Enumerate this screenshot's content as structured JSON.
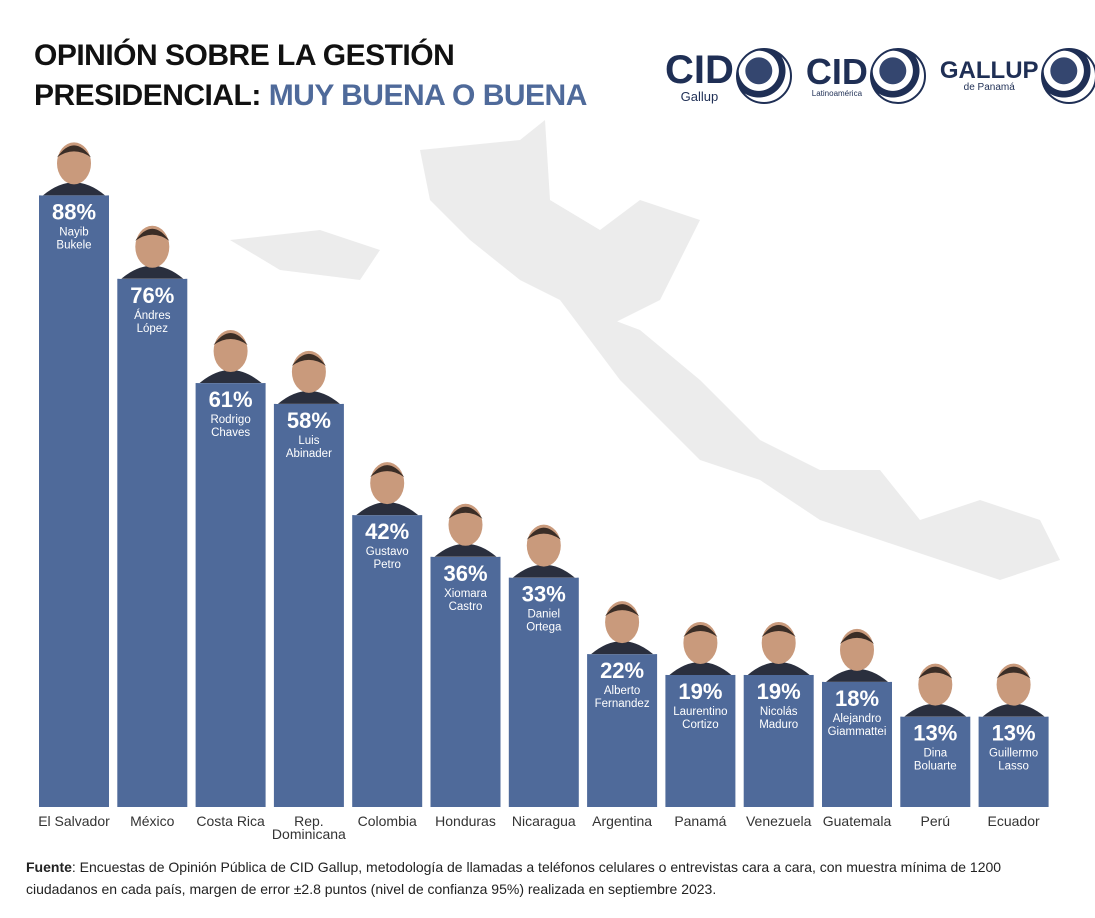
{
  "title": {
    "line1": "OPINIÓN SOBRE LA GESTIÓN",
    "line2_prefix": "PRESIDENCIAL: ",
    "line2_highlight": "MUY BUENA O BUENA"
  },
  "logos": [
    {
      "main": "CID",
      "sub": "Gallup"
    },
    {
      "main": "CID",
      "sub": "Latinoamérica"
    },
    {
      "main": "GALLUP",
      "sub": "de Panamá"
    }
  ],
  "colors": {
    "bar": "#4f6a9a",
    "highlight": "#4f6a9a",
    "map": "#ececec"
  },
  "chart_data": {
    "type": "bar",
    "title": "OPINIÓN SOBRE LA GESTIÓN PRESIDENCIAL: MUY BUENA O BUENA",
    "ylim": [
      0,
      100
    ],
    "grid": false,
    "categories": [
      "El Salvador",
      "México",
      "Costa Rica",
      "Rep. Dominicana",
      "Colombia",
      "Honduras",
      "Nicaragua",
      "Argentina",
      "Panamá",
      "Venezuela",
      "Guatemala",
      "Perú",
      "Ecuador"
    ],
    "values": [
      88,
      76,
      61,
      58,
      42,
      36,
      33,
      22,
      19,
      19,
      18,
      13,
      13
    ],
    "value_labels": [
      "88%",
      "76%",
      "61%",
      "58%",
      "42%",
      "36%",
      "33%",
      "22%",
      "19%",
      "19%",
      "18%",
      "13%",
      "13%"
    ],
    "leaders": [
      [
        "Nayib",
        "Bukele"
      ],
      [
        "Ándres",
        "López"
      ],
      [
        "Rodrigo",
        "Chaves"
      ],
      [
        "Luis",
        "Abinader"
      ],
      [
        "Gustavo",
        "Petro"
      ],
      [
        "Xiomara",
        "Castro"
      ],
      [
        "Daniel",
        "Ortega"
      ],
      [
        "Alberto",
        "Fernandez"
      ],
      [
        "Laurentino",
        "Cortizo"
      ],
      [
        "Nicolás",
        "Maduro"
      ],
      [
        "Alejandro",
        "Giammattei"
      ],
      [
        "Dina",
        "Boluarte"
      ],
      [
        "Guillermo",
        "Lasso"
      ]
    ]
  },
  "footer": {
    "label": "Fuente",
    "text": ": Encuestas de Opinión Pública de CID Gallup, metodología de llamadas a teléfonos celulares o entrevistas cara a cara, con muestra mínima de 1200 ciudadanos en cada país, margen de error ±2.8 puntos (nivel de confianza 95%) realizada en septiembre 2023."
  }
}
